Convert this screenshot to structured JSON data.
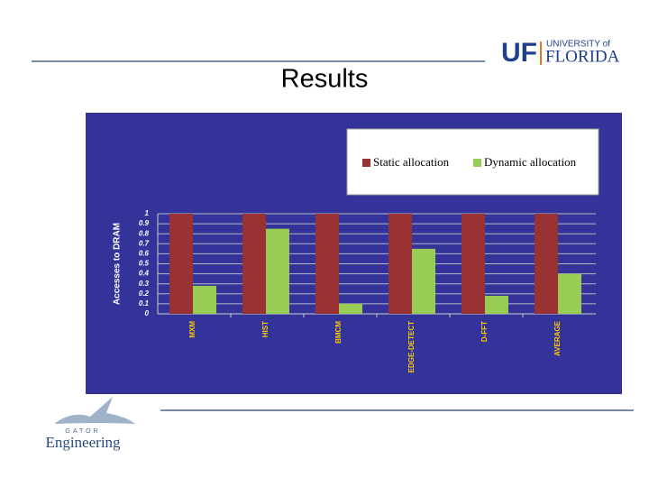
{
  "slide": {
    "title": "Results",
    "logo_top": {
      "mark": "UF",
      "line1": "UNIVERSITY of",
      "line2": "FLORIDA"
    },
    "logo_bottom": {
      "small": "GATOR",
      "big": "Engineering"
    }
  },
  "chart_data": {
    "type": "bar",
    "y_label": "Accesses to DRAM",
    "categories": [
      "MXM",
      "HIST",
      "BMCM",
      "EDGE-DETECT",
      "D-FFT",
      "AVERAGE"
    ],
    "series": [
      {
        "name": "Static allocation",
        "color": "#993333",
        "values": [
          1,
          1,
          1,
          1,
          1,
          1
        ]
      },
      {
        "name": "Dynamic allocation",
        "color": "#99cc55",
        "values": [
          0.28,
          0.85,
          0.1,
          0.65,
          0.18,
          0.4
        ]
      }
    ],
    "ylim": [
      0,
      1
    ],
    "yticks": [
      0,
      0.1,
      0.2,
      0.3,
      0.4,
      0.5,
      0.6,
      0.7,
      0.8,
      0.9,
      1
    ],
    "grid": true
  }
}
